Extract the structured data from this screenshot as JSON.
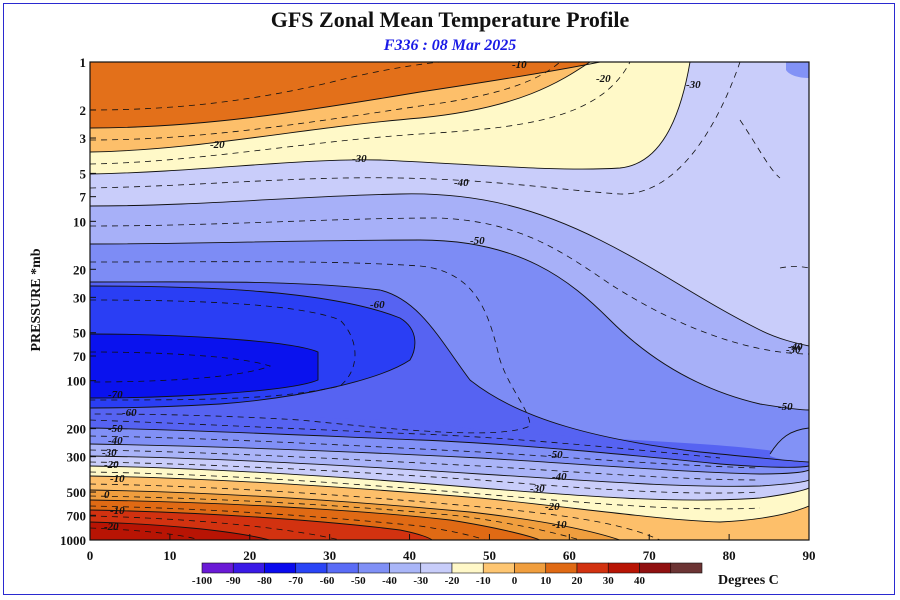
{
  "chart_data": {
    "type": "contour",
    "title": "GFS Zonal Mean Temperature Profile",
    "subtitle": "F336 : 08 Mar 2025",
    "ylabel": "PRESSURE *mb",
    "units": "Degrees C",
    "x_ticks": [
      "0",
      "10",
      "20",
      "30",
      "40",
      "50",
      "60",
      "70",
      "80",
      "90"
    ],
    "xlim": [
      0,
      90
    ],
    "y_ticks": [
      "1",
      "2",
      "3",
      "5",
      "7",
      "10",
      "20",
      "30",
      "50",
      "70",
      "100",
      "200",
      "300",
      "500",
      "700",
      "1000"
    ],
    "ylim": [
      1000,
      1
    ],
    "y_scale": "log",
    "legend_levels": [
      "-100",
      "-90",
      "-80",
      "-70",
      "-60",
      "-50",
      "-40",
      "-30",
      "-20",
      "-10",
      "0",
      "10",
      "20",
      "30",
      "40"
    ],
    "legend_colors": [
      "#8a00c8",
      "#6a1ad6",
      "#3a1ae6",
      "#0a0aee",
      "#2a44f6",
      "#5a6cf6",
      "#8090f6",
      "#aab6f8",
      "#c8cdfa",
      "#fff8c8",
      "#fec672",
      "#f09e3e",
      "#e06a14",
      "#d23210",
      "#b81404",
      "#901010",
      "#6c3434",
      "#7a6a28"
    ],
    "contour_labels": [
      "-10",
      "-20",
      "-30",
      "-20",
      "-30",
      "-40",
      "-50",
      "-60",
      "-70",
      "-60",
      "-50",
      "-40",
      "-30",
      "-20",
      "-10",
      "0",
      "-10",
      "-20",
      "-50",
      "-40",
      "-30",
      "-20",
      "-10",
      "-50",
      "-40",
      "-30"
    ]
  }
}
